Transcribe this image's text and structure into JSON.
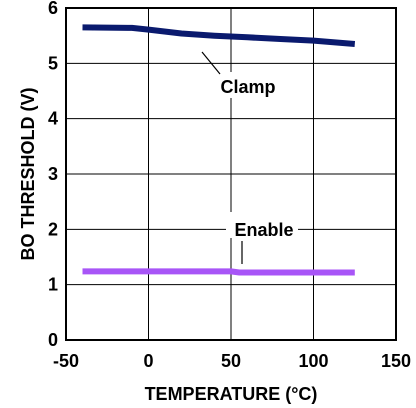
{
  "chart_data": {
    "type": "line",
    "xlabel": "TEMPERATURE (°C)",
    "ylabel": "BO THRESHOLD (V)",
    "xlim": [
      -50,
      150
    ],
    "ylim": [
      0,
      6
    ],
    "x_ticks": [
      "-50",
      "0",
      "50",
      "100",
      "150"
    ],
    "y_ticks": [
      "0",
      "1",
      "2",
      "3",
      "4",
      "5",
      "6"
    ],
    "grid": true,
    "series": [
      {
        "name": "Clamp",
        "color": "#0a1a6e",
        "x": [
          -40,
          -10,
          0,
          20,
          40,
          60,
          80,
          100,
          125
        ],
        "y": [
          5.65,
          5.64,
          5.61,
          5.54,
          5.5,
          5.47,
          5.44,
          5.41,
          5.35
        ]
      },
      {
        "name": "Enable",
        "color": "#a855f7",
        "x": [
          -40,
          0,
          50,
          55,
          100,
          125
        ],
        "y": [
          1.24,
          1.24,
          1.24,
          1.22,
          1.22,
          1.22
        ]
      }
    ],
    "annotations": [
      {
        "text": "Clamp",
        "series": "Clamp",
        "x": 55,
        "y": 4.95
      },
      {
        "text": "Enable",
        "series": "Enable",
        "x": 60,
        "y": 2.0
      }
    ]
  }
}
